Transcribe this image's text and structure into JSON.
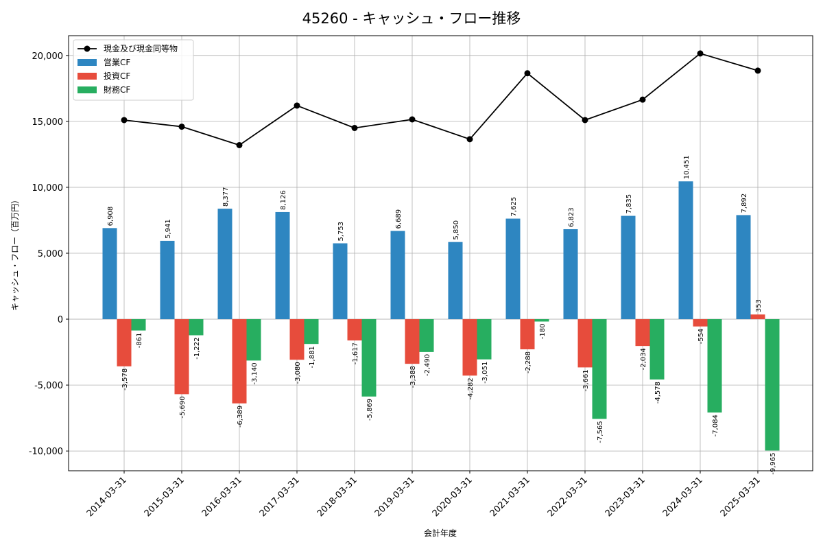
{
  "chart_data": {
    "type": "bar",
    "title": "45260 - キャッシュ・フロー推移",
    "xlabel": "会計年度",
    "ylabel": "キャッシュ・フロー（百万円）",
    "ylim": [
      -11500,
      21500
    ],
    "yticks": [
      -10000,
      -5000,
      0,
      5000,
      10000,
      15000,
      20000
    ],
    "ytick_labels": [
      "-10,000",
      "-5,000",
      "0",
      "5,000",
      "10,000",
      "15,000",
      "20,000"
    ],
    "grid": true,
    "legend_position": "top-left",
    "categories": [
      "2014-03-31",
      "2015-03-31",
      "2016-03-31",
      "2017-03-31",
      "2018-03-31",
      "2019-03-31",
      "2020-03-31",
      "2021-03-31",
      "2022-03-31",
      "2023-03-31",
      "2024-03-31",
      "2025-03-31"
    ],
    "series": [
      {
        "name": "営業CF",
        "kind": "bar",
        "color": "#2e86c1",
        "values": [
          6908,
          5941,
          8377,
          8126,
          5753,
          6689,
          5850,
          7625,
          6823,
          7835,
          10451,
          7892
        ],
        "labels": [
          "6,908",
          "5,941",
          "8,377",
          "8,126",
          "5,753",
          "6,689",
          "5,850",
          "7,625",
          "6,823",
          "7,835",
          "10,451",
          "7,892"
        ]
      },
      {
        "name": "投資CF",
        "kind": "bar",
        "color": "#e74c3c",
        "values": [
          -3578,
          -5690,
          -6389,
          -3080,
          -1617,
          -3388,
          -4282,
          -2288,
          -3661,
          -2034,
          -554,
          353
        ],
        "labels": [
          "-3,578",
          "-5,690",
          "-6,389",
          "-3,080",
          "-1,617",
          "-3,388",
          "-4,282",
          "-2,288",
          "-3,661",
          "-2,034",
          "-554",
          "353"
        ]
      },
      {
        "name": "財務CF",
        "kind": "bar",
        "color": "#27ae60",
        "values": [
          -861,
          -1222,
          -3140,
          -1881,
          -5869,
          -2490,
          -3051,
          -180,
          -7565,
          -4578,
          -7084,
          -9965
        ],
        "labels": [
          "-861",
          "-1,222",
          "-3,140",
          "-1,881",
          "-5,869",
          "-2,490",
          "-3,051",
          "-180",
          "-7,565",
          "-4,578",
          "-7,084",
          "-9,965"
        ]
      },
      {
        "name": "現金及び現金同等物",
        "kind": "line",
        "color": "#000000",
        "values": [
          15100,
          14600,
          13200,
          16200,
          14500,
          15150,
          13650,
          18650,
          15100,
          16650,
          20150,
          18850
        ]
      }
    ]
  }
}
